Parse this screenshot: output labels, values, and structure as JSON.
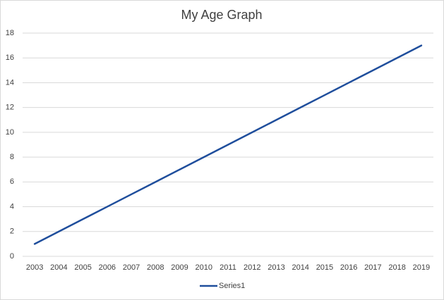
{
  "chart_data": {
    "type": "line",
    "title": "My Age Graph",
    "categories": [
      "2003",
      "2004",
      "2005",
      "2006",
      "2007",
      "2008",
      "2009",
      "2010",
      "2011",
      "2012",
      "2013",
      "2014",
      "2015",
      "2016",
      "2017",
      "2018",
      "2019"
    ],
    "series": [
      {
        "name": "Series1",
        "color": "#1f4e9c",
        "values": [
          1,
          2,
          3,
          4,
          5,
          6,
          7,
          8,
          9,
          10,
          11,
          12,
          13,
          14,
          15,
          16,
          17
        ]
      }
    ],
    "ylim": [
      0,
      18
    ],
    "yticks": [
      0,
      2,
      4,
      6,
      8,
      10,
      12,
      14,
      16,
      18
    ],
    "grid": true,
    "legend": "bottom"
  }
}
